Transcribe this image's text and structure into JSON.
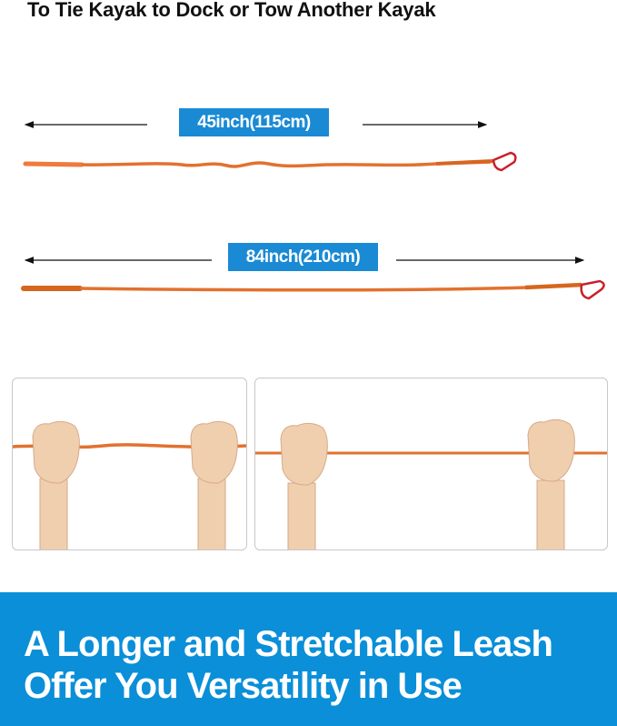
{
  "top_title": "To Tie Kayak to Dock or Tow Another Kayak",
  "measurements": [
    {
      "label": "45inch(115cm)"
    },
    {
      "label": "84inch(210cm)"
    }
  ],
  "colors": {
    "accent_blue": "#0a8fd8",
    "leash_orange": "#e2712e",
    "carabiner_red": "#c8202a"
  },
  "banner": {
    "line1": "A Longer and Stretchable Leash",
    "line2": "Offer You Versatility in Use"
  }
}
